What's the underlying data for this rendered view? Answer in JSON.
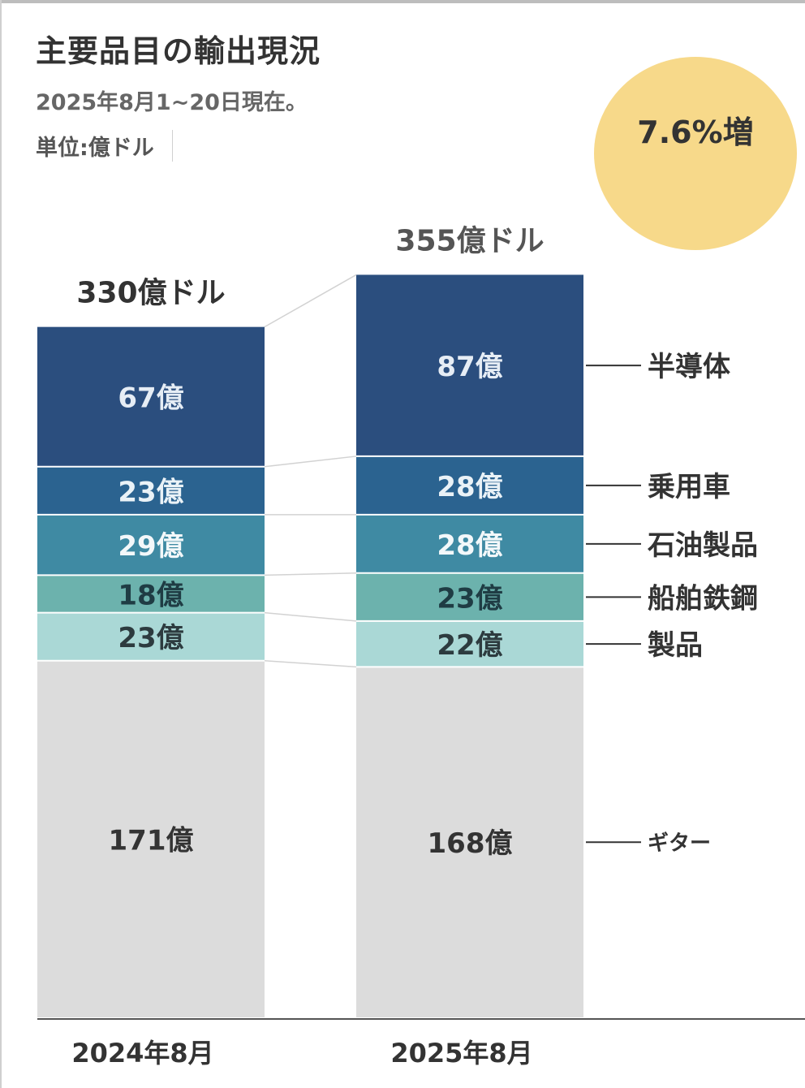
{
  "header": {
    "title": "主要品目の輸出現況",
    "subtitle": "2025年8月1~20日現在。",
    "unit": "単位:億ドル"
  },
  "badge": {
    "text": "7.6%増",
    "color": "#f7d98a"
  },
  "chart_data": {
    "type": "bar",
    "stacked": true,
    "categories": [
      "2024年8月",
      "2025年8月"
    ],
    "totals": [
      330,
      355
    ],
    "total_labels": [
      "330億ドル",
      "355億ドル"
    ],
    "series": [
      {
        "name": "ギター",
        "values": [
          171,
          168
        ],
        "labels": [
          "171億",
          "168億"
        ],
        "color": "#dcdcdc",
        "text_color": "#333333"
      },
      {
        "name": "製品",
        "values": [
          23,
          22
        ],
        "labels": [
          "23億",
          "22億"
        ],
        "color": "#aad8d6",
        "text_color": "#2d3b3f"
      },
      {
        "name": "船舶鉄鋼",
        "values": [
          18,
          23
        ],
        "labels": [
          "18億",
          "23億"
        ],
        "color": "#6cb2ad",
        "text_color": "#1f3c44"
      },
      {
        "name": "石油製品",
        "values": [
          29,
          28
        ],
        "labels": [
          "29億",
          "28億"
        ],
        "color": "#3f8aa3",
        "text_color": "#f3f8fa"
      },
      {
        "name": "乗用車",
        "values": [
          23,
          28
        ],
        "labels": [
          "23億",
          "28億"
        ],
        "color": "#2b6390",
        "text_color": "#eaf2f7"
      },
      {
        "name": "半導体",
        "values": [
          67,
          87
        ],
        "labels": [
          "67億",
          "87億"
        ],
        "color": "#2b4e7e",
        "text_color": "#e6edf5"
      }
    ],
    "ylim": [
      0,
      355
    ],
    "legend": "right",
    "grid": false
  }
}
